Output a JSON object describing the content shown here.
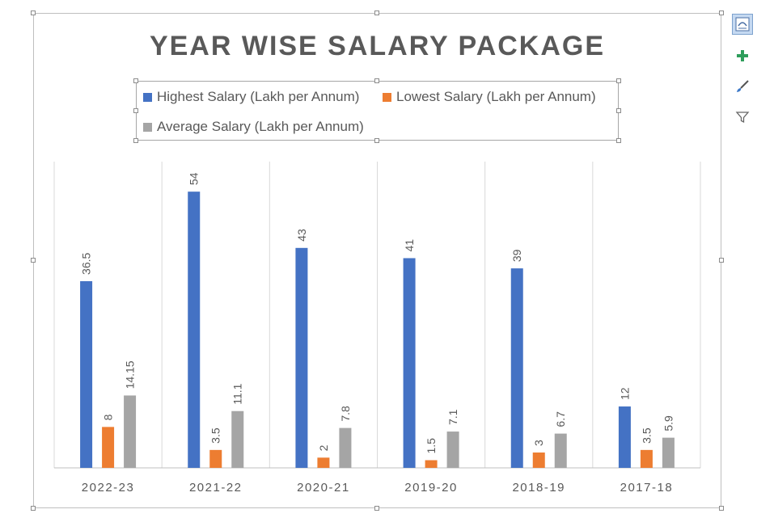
{
  "chart_data": {
    "type": "bar",
    "title": "YEAR WISE SALARY PACKAGE",
    "categories": [
      "2022-23",
      "2021-22",
      "2020-21",
      "2019-20",
      "2018-19",
      "2017-18"
    ],
    "series": [
      {
        "name": "Highest Salary (Lakh per Annum)",
        "color": "#4472c4",
        "values": [
          36.5,
          54,
          43,
          41,
          39,
          12
        ],
        "labels": [
          "36.5",
          "54",
          "43",
          "41",
          "39",
          "12"
        ]
      },
      {
        "name": "Lowest Salary (Lakh per Annum)",
        "color": "#ed7d31",
        "values": [
          8,
          3.5,
          2,
          1.5,
          3,
          3.5
        ],
        "labels": [
          "8",
          "3.5",
          "2",
          "1.5",
          "3",
          "3.5"
        ]
      },
      {
        "name": "Average Salary (Lakh per Annum)",
        "color": "#a5a5a5",
        "values": [
          14.15,
          11.1,
          7.8,
          7.1,
          6.7,
          5.9
        ],
        "labels": [
          "14.15",
          "11.1",
          "7.8",
          "7.1",
          "6.7",
          "5.9"
        ]
      }
    ],
    "ylim": [
      0,
      60
    ],
    "legend_position": "top",
    "grid": "vertical category separators",
    "data_labels": true
  },
  "side_tools": [
    {
      "icon": "chart-layout-icon",
      "active": true
    },
    {
      "icon": "chart-elements-plus-icon",
      "active": false
    },
    {
      "icon": "chart-styles-brush-icon",
      "active": false
    },
    {
      "icon": "chart-filter-icon",
      "active": false
    }
  ]
}
